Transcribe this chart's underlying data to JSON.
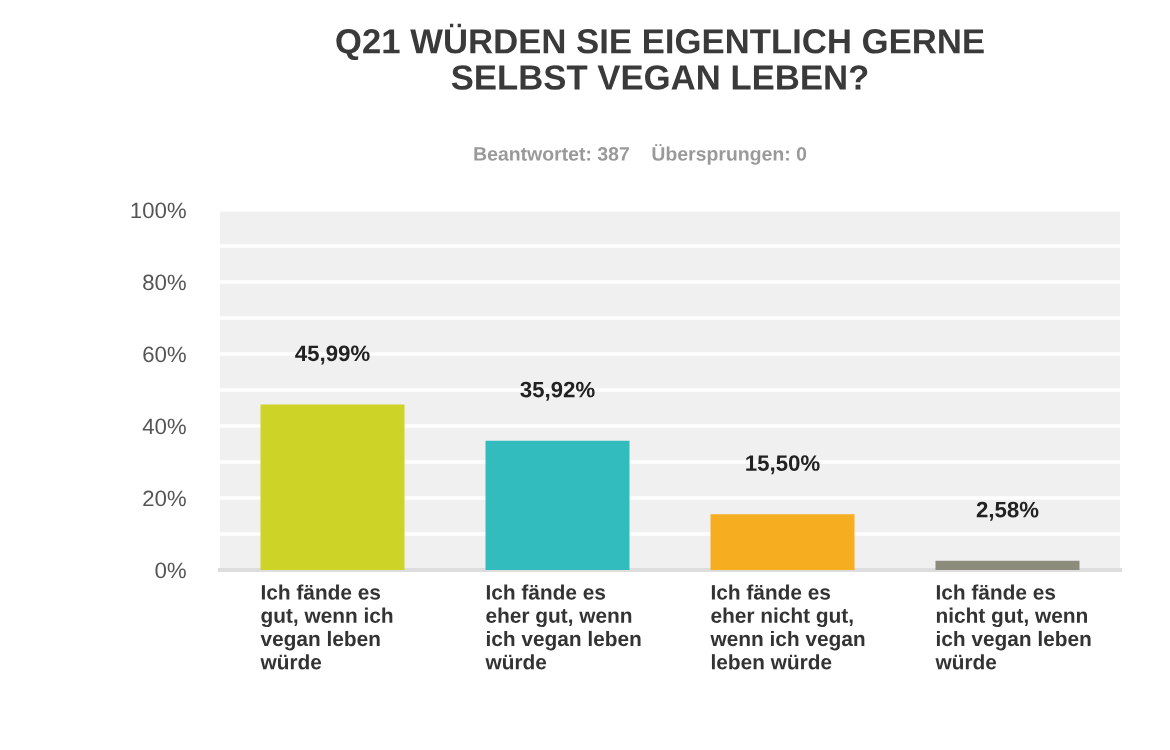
{
  "chart_data": {
    "type": "bar",
    "title": "Q21 WÜRDEN SIE EIGENTLICH GERNE\nSELBST VEGAN LEBEN?",
    "subtitle": "Beantwortet: 387    Übersprungen: 0",
    "categories": [
      "Ich fände es\ngut, wenn ich\nvegan leben\nwürde",
      "Ich fände es\neher gut, wenn\nich vegan leben\nwürde",
      "Ich fände es\neher nicht gut,\nwenn ich vegan\nleben würde",
      "Ich fände es\nnicht gut, wenn\nich vegan leben\nwürde"
    ],
    "values": [
      45.99,
      35.92,
      15.5,
      2.58
    ],
    "colors": [
      "#cdd427",
      "#33bcbe",
      "#f6ae20",
      "#8c8c7c"
    ],
    "value_labels": [
      "45,99%",
      "35,92%",
      "15,50%",
      "2,58%"
    ],
    "ylim": [
      0,
      100
    ],
    "yticks": [
      {
        "value": 0,
        "label": "0%"
      },
      {
        "value": 10,
        "label": null
      },
      {
        "value": 20,
        "label": "20%"
      },
      {
        "value": 30,
        "label": null
      },
      {
        "value": 40,
        "label": "40%"
      },
      {
        "value": 50,
        "label": null
      },
      {
        "value": 60,
        "label": "60%"
      },
      {
        "value": 70,
        "label": null
      },
      {
        "value": 80,
        "label": "80%"
      },
      {
        "value": 90,
        "label": null
      },
      {
        "value": 100,
        "label": "100%"
      }
    ],
    "grid": "y"
  }
}
